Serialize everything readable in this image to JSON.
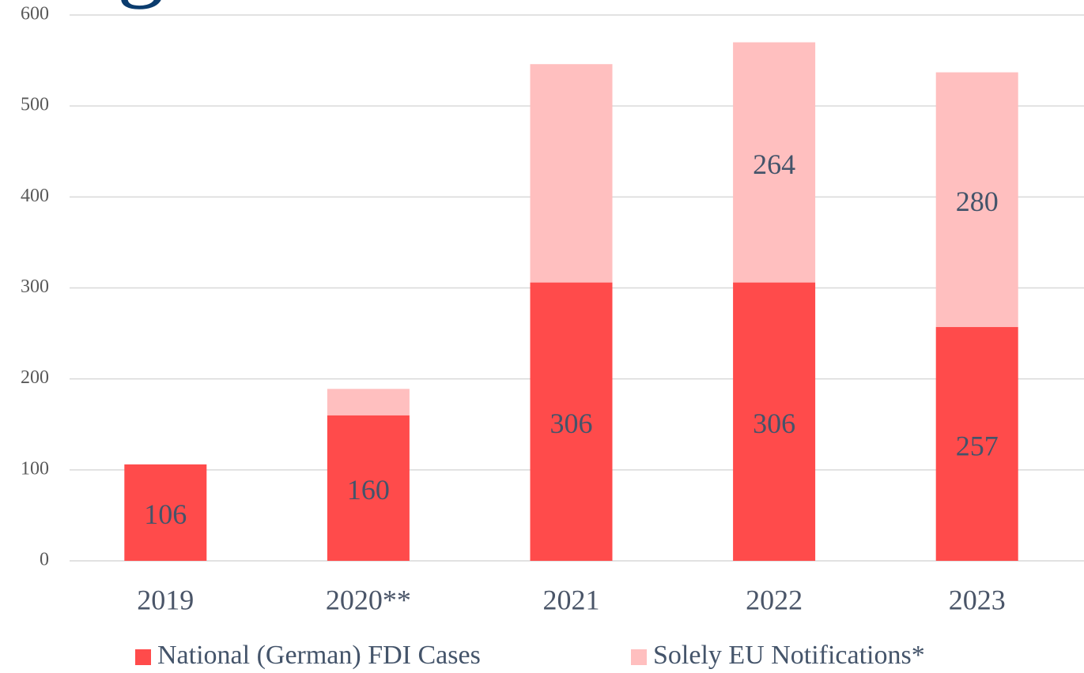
{
  "chart_data": {
    "type": "stacked_bar",
    "title": "g",
    "categories": [
      "2019",
      "2020**",
      "2021",
      "2022",
      "2023"
    ],
    "series": [
      {
        "name": "National (German) FDI Cases",
        "color": "#ff4b4b",
        "values": [
          106,
          160,
          306,
          306,
          257
        ],
        "value_labels": [
          "106",
          "160",
          "306",
          "306",
          "257"
        ]
      },
      {
        "name": "Solely EU Notifications*",
        "color": "#ffbfbf",
        "values": [
          null,
          29,
          240,
          264,
          280
        ],
        "value_labels": [
          null,
          null,
          null,
          "264",
          "280"
        ]
      }
    ],
    "ylim": [
      0,
      600
    ],
    "yticks": [
      0,
      100,
      200,
      300,
      400,
      500,
      600
    ],
    "grid": true
  }
}
